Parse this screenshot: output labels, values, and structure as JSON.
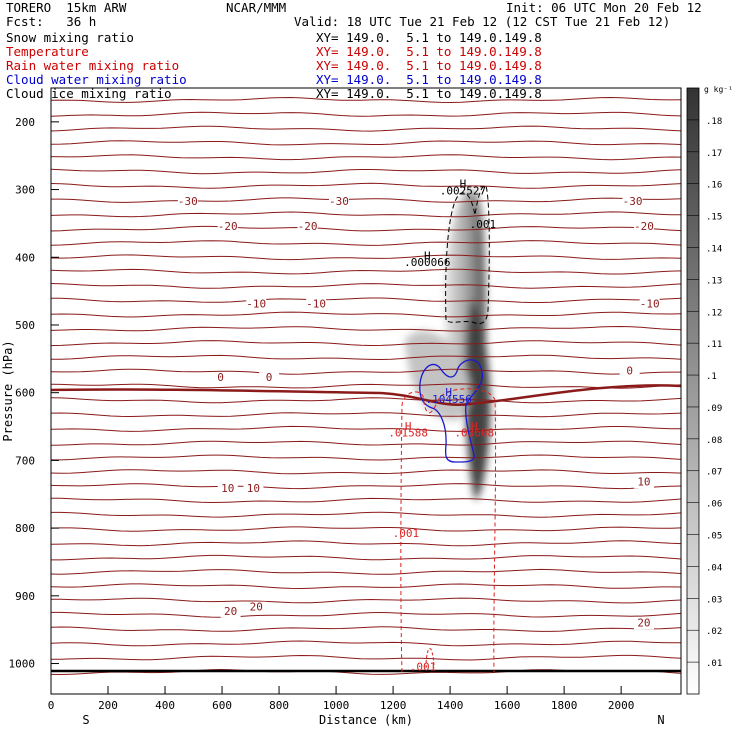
{
  "header": {
    "model": "TORERO  15km ARW",
    "org": "NCAR/MMM",
    "init": "Init: 06 UTC Mon 20 Feb 12",
    "fcst": "Fcst:   36 h",
    "valid": "Valid: 18 UTC Tue 21 Feb 12 (12 CST Tue 21 Feb 12)"
  },
  "fields": [
    {
      "name": "Snow mixing ratio",
      "xy": "XY= 149.0.  5.1 to 149.0.149.8",
      "color": "#000000"
    },
    {
      "name": "Temperature",
      "xy": "XY= 149.0.  5.1 to 149.0.149.8",
      "color": "#cc0000"
    },
    {
      "name": "Rain water mixing ratio",
      "xy": "XY= 149.0.  5.1 to 149.0.149.8",
      "color": "#cc0000"
    },
    {
      "name": "Cloud water mixing ratio",
      "xy": "XY= 149.0.  5.1 to 149.0.149.8",
      "color": "#0000cc"
    },
    {
      "name": "Cloud ice mixing ratio",
      "xy": "XY= 149.0.  5.1 to 149.0.149.8",
      "color": "#000000"
    }
  ],
  "colors": {
    "temperature": "#8b1a1a",
    "rain": "#dd2222",
    "cloud_water": "#1a1acc",
    "ice": "#000000",
    "ground": "#000000"
  },
  "chart_data": {
    "type": "cross-section",
    "xlabel": "Distance (km)",
    "ylabel": "Pressure (hPa)",
    "xlim": [
      0,
      2210
    ],
    "ylim": [
      150,
      1045
    ],
    "x_ticks": [
      0,
      200,
      400,
      600,
      800,
      1000,
      1200,
      1400,
      1600,
      1800,
      2000
    ],
    "y_ticks": [
      200,
      300,
      400,
      500,
      600,
      700,
      800,
      900,
      1000
    ],
    "y_scale": "linear-inverted",
    "left_end": "S",
    "right_end": "N",
    "colorbar": {
      "unit": "g kg⁻¹",
      "ticks": [
        ".01",
        ".02",
        ".03",
        ".04",
        ".05",
        ".06",
        ".07",
        ".08",
        ".09",
        ".1",
        ".11",
        ".12",
        ".13",
        ".14",
        ".15",
        ".16",
        ".17",
        ".18"
      ]
    },
    "isotherm_labels": [
      {
        "text": "-30",
        "x": 480,
        "p": 323
      },
      {
        "text": "-30",
        "x": 1010,
        "p": 323
      },
      {
        "text": "-30",
        "x": 2040,
        "p": 323
      },
      {
        "text": "-20",
        "x": 620,
        "p": 360
      },
      {
        "text": "-20",
        "x": 900,
        "p": 360
      },
      {
        "text": "-20",
        "x": 2080,
        "p": 360
      },
      {
        "text": "-10",
        "x": 720,
        "p": 474
      },
      {
        "text": "-10",
        "x": 930,
        "p": 474
      },
      {
        "text": "-10",
        "x": 2100,
        "p": 474
      },
      {
        "text": "0",
        "x": 595,
        "p": 583
      },
      {
        "text": "0",
        "x": 765,
        "p": 583
      },
      {
        "text": "0",
        "x": 2030,
        "p": 573
      },
      {
        "text": "10",
        "x": 620,
        "p": 747
      },
      {
        "text": "10",
        "x": 710,
        "p": 747
      },
      {
        "text": "10",
        "x": 2080,
        "p": 737
      },
      {
        "text": "20",
        "x": 630,
        "p": 928
      },
      {
        "text": "20",
        "x": 720,
        "p": 922
      },
      {
        "text": "20",
        "x": 2080,
        "p": 945
      }
    ],
    "extrema_labels": [
      {
        "text": "H",
        "x": 1320,
        "p": 403,
        "color": "ice"
      },
      {
        "text": ".000066",
        "x": 1320,
        "p": 413,
        "color": "ice"
      },
      {
        "text": "H",
        "x": 1445,
        "p": 297,
        "color": "ice"
      },
      {
        "text": ".002527",
        "x": 1445,
        "p": 307,
        "color": "ice"
      },
      {
        "text": ".001",
        "x": 1515,
        "p": 357,
        "color": "ice"
      },
      {
        "text": "H",
        "x": 1395,
        "p": 605,
        "color": "cloud_water"
      },
      {
        "text": ".104556",
        "x": 1395,
        "p": 615,
        "color": "cloud_water"
      },
      {
        "text": "H",
        "x": 1253,
        "p": 655,
        "color": "rain"
      },
      {
        "text": ".01588",
        "x": 1253,
        "p": 665,
        "color": "rain"
      },
      {
        "text": "H",
        "x": 1485,
        "p": 655,
        "color": "rain"
      },
      {
        "text": ".03608",
        "x": 1485,
        "p": 665,
        "color": "rain"
      },
      {
        "text": ".001",
        "x": 1245,
        "p": 813,
        "color": "rain"
      },
      {
        "text": ".001",
        "x": 1305,
        "p": 1010,
        "color": "rain"
      }
    ]
  }
}
